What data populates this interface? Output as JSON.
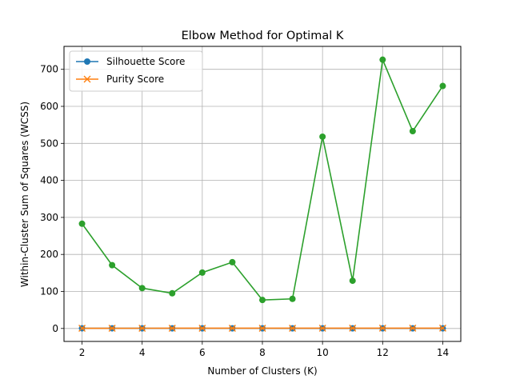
{
  "chart_data": {
    "type": "line",
    "title": "Elbow Method for Optimal K",
    "xlabel": "Number of Clusters (K)",
    "ylabel": "Within-Cluster Sum of Squares (WCSS)",
    "xlim": [
      1.4,
      14.6
    ],
    "ylim": [
      -35,
      762
    ],
    "x": [
      2,
      3,
      4,
      5,
      6,
      7,
      8,
      9,
      10,
      11,
      12,
      13,
      14
    ],
    "xticks": [
      2,
      4,
      6,
      8,
      10,
      12,
      14
    ],
    "yticks": [
      0,
      100,
      200,
      300,
      400,
      500,
      600,
      700
    ],
    "grid": true,
    "legend_position": "upper-left",
    "series": [
      {
        "name": "Silhouette Score",
        "color": "#1f77b4",
        "marker": "circle",
        "in_legend": true,
        "values": [
          0.45,
          0.42,
          0.4,
          0.38,
          0.37,
          0.36,
          0.35,
          0.34,
          0.33,
          0.33,
          0.32,
          0.31,
          0.3
        ]
      },
      {
        "name": "Purity Score",
        "color": "#ff7f0e",
        "marker": "x",
        "in_legend": true,
        "values": [
          0.55,
          0.6,
          0.65,
          0.68,
          0.7,
          0.72,
          0.74,
          0.76,
          0.78,
          0.8,
          0.82,
          0.84,
          0.86
        ]
      },
      {
        "name": "",
        "color": "#2ca02c",
        "marker": "circle",
        "in_legend": false,
        "values": [
          283,
          171,
          109,
          95,
          151,
          179,
          77,
          80,
          518,
          129,
          726,
          533,
          655
        ]
      }
    ]
  }
}
